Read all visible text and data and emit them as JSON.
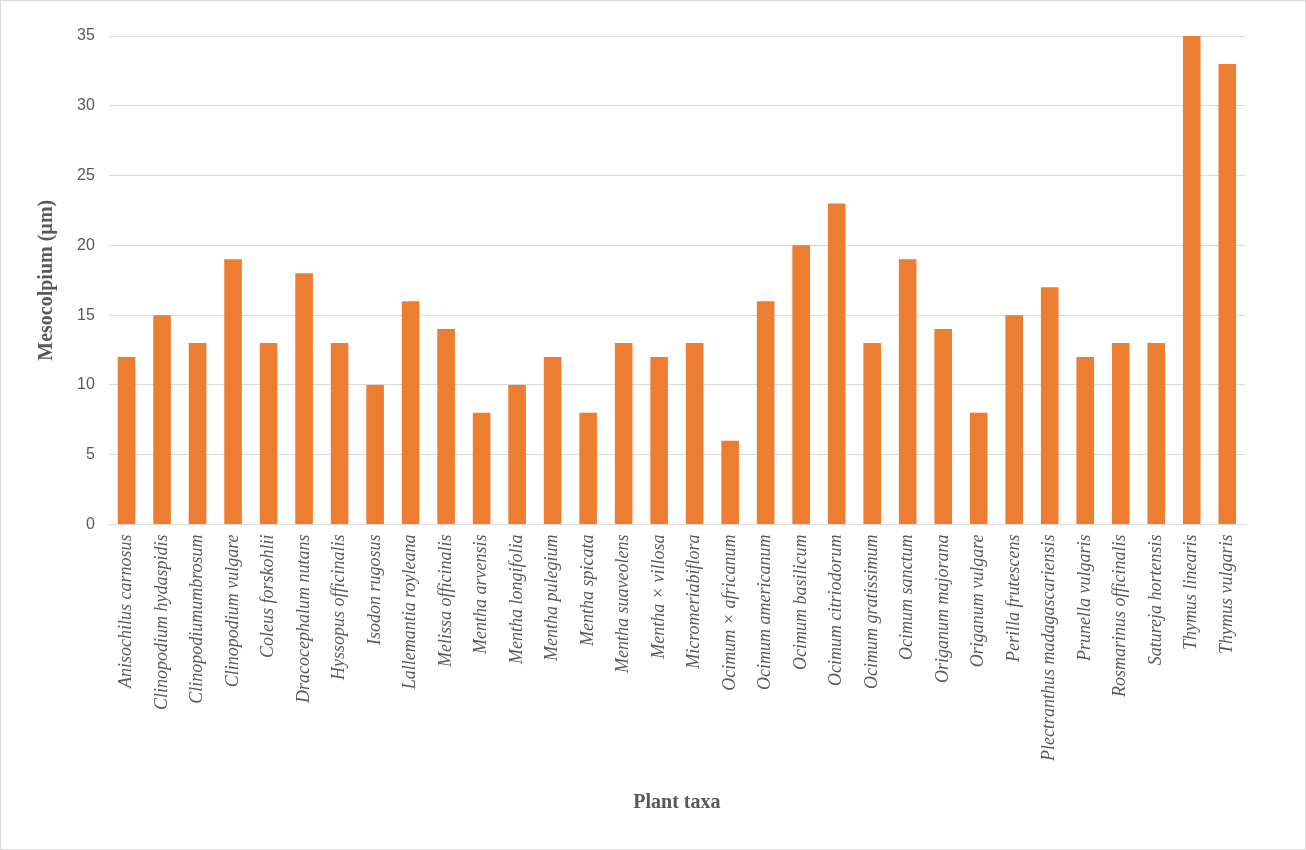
{
  "chart_data": {
    "type": "bar",
    "xlabel": "Plant taxa",
    "ylabel": "Mesocolpium (µm)",
    "categories": [
      "Anisochilus carnosus",
      "Clinopodium hydaspidis",
      "Clinopodiumumbrosum",
      "Clinopodium vulgare",
      "Coleus forskohlii",
      "Dracocephalum nutans",
      "Hyssopus officinalis",
      "Isodon rugosus",
      "Lallemantia royleana",
      "Melissa officinalis",
      "Mentha arvensis",
      "Mentha longifolia",
      "Mentha pulegium",
      "Mentha spicata",
      "Mentha suaveolens",
      "Mentha × villosa",
      "Micromeriabiflora",
      "Ocimum × africanum",
      "Ocimum americanum",
      "Ocimum basilicum",
      "Ocimum citriodorum",
      "Ocimum gratissimum",
      "Ocimum sanctum",
      "Origanum majorana",
      "Origanum vulgare",
      "Perilla frutescens",
      "Plectranthus madagascariensis",
      "Prunella vulgaris",
      "Rosmarinus officinalis",
      "Satureja hortensis",
      "Thymus linearis",
      "Thymus vulgaris"
    ],
    "values": [
      12,
      15,
      13,
      19,
      13,
      18,
      13,
      10,
      16,
      14,
      8,
      10,
      12,
      8,
      13,
      12,
      13,
      6,
      16,
      20,
      23,
      13,
      19,
      14,
      8,
      15,
      17,
      12,
      13,
      13,
      35,
      33
    ],
    "color": "#ed7d31",
    "ylim": [
      0,
      35
    ],
    "yticks": [
      0,
      5,
      10,
      15,
      20,
      25,
      30,
      35
    ],
    "grid": "y",
    "legend": false
  }
}
